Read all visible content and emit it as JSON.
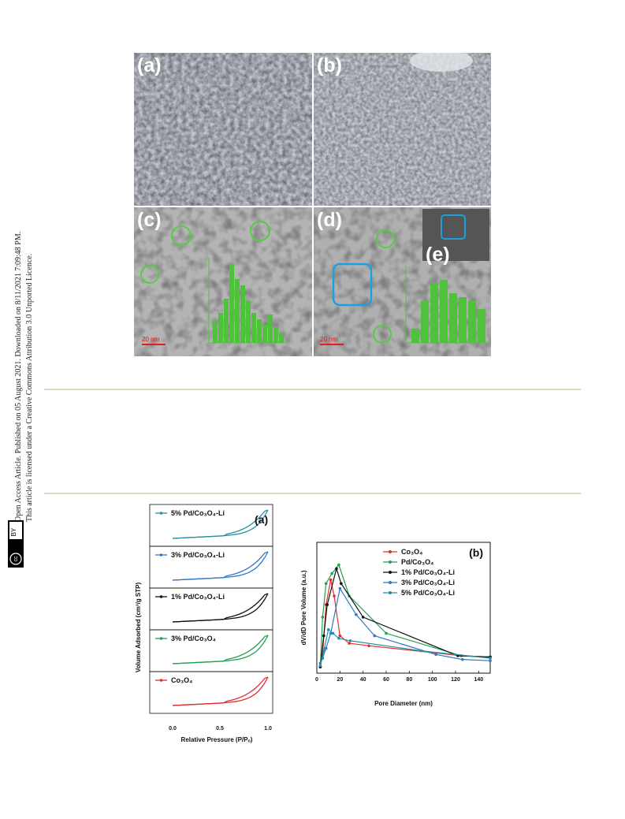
{
  "sidebar": {
    "line1": "Open Access Article. Published on 05 August 2021. Downloaded on 8/11/2021 7:09:48 PM.",
    "line2": "This article is licensed under a Creative Commons Attribution 3.0 Unported Licence.",
    "badge_cc": "cc",
    "badge_by": "BY"
  },
  "figure_micro": {
    "panels": [
      "(a)",
      "(b)",
      "(c)",
      "(d)",
      "(e)"
    ],
    "scale_c": "20 nm",
    "scale_d": "20 nm"
  },
  "figure_iso": {
    "panel_label": "(a)",
    "ylabel": "Volume Adsorbed (cm³/g STP)",
    "xlabel": "Relative Pressure (P/Pₒ)",
    "xticks": [
      "0.0",
      "0.5",
      "1.0"
    ],
    "traces": [
      {
        "name": "5% Pd/Co₃O₄-Li",
        "color": "#2a8fa3"
      },
      {
        "name": "3% Pd/Co₃O₄-Li",
        "color": "#2f78c4"
      },
      {
        "name": "1% Pd/Co₃O₄-Li",
        "color": "#111111"
      },
      {
        "name": "3% Pd/Co₃O₄",
        "color": "#23a050"
      },
      {
        "name": "Co₃O₄",
        "color": "#e03030"
      }
    ]
  },
  "chart_data": {
    "type": "line",
    "title": "(b)",
    "xlabel": "Pore Diameter (nm)",
    "ylabel": "dV/dD Pore Volume (a.u.)",
    "xlim": [
      0,
      150
    ],
    "xticks": [
      "0",
      "20",
      "40",
      "60",
      "80",
      "100",
      "120",
      "140"
    ],
    "legend_position": "top-right",
    "series": [
      {
        "name": "Co₃O₄",
        "color": "#e03030",
        "x": [
          3,
          5,
          8,
          12,
          15,
          20,
          28,
          45,
          125,
          150
        ],
        "y": [
          0.05,
          0.15,
          0.55,
          0.75,
          0.62,
          0.3,
          0.24,
          0.22,
          0.14,
          0.13
        ]
      },
      {
        "name": "Pd/Co₃O₄",
        "color": "#23a050",
        "x": [
          3,
          5,
          8,
          13,
          19,
          28,
          60,
          125,
          150
        ],
        "y": [
          0.05,
          0.45,
          0.72,
          0.8,
          0.87,
          0.62,
          0.32,
          0.14,
          0.13
        ]
      },
      {
        "name": "1% Pd/Co₃O₄-Li",
        "color": "#111111",
        "x": [
          3,
          6,
          9,
          17,
          21,
          40,
          122,
          150
        ],
        "y": [
          0.05,
          0.3,
          0.55,
          0.84,
          0.72,
          0.45,
          0.14,
          0.13
        ]
      },
      {
        "name": "3% Pd/Co₃O₄-Li",
        "color": "#2f78c4",
        "x": [
          3,
          5,
          8,
          12,
          20,
          34,
          50,
          103,
          126,
          150
        ],
        "y": [
          0.08,
          0.12,
          0.2,
          0.32,
          0.68,
          0.47,
          0.3,
          0.15,
          0.11,
          0.1
        ]
      },
      {
        "name": "5% Pd/Co₃O₄-Li",
        "color": "#2a8fa3",
        "x": [
          3,
          6,
          10,
          14,
          19,
          29,
          90,
          150
        ],
        "y": [
          0.06,
          0.18,
          0.35,
          0.32,
          0.28,
          0.26,
          0.18,
          0.12
        ]
      }
    ]
  }
}
